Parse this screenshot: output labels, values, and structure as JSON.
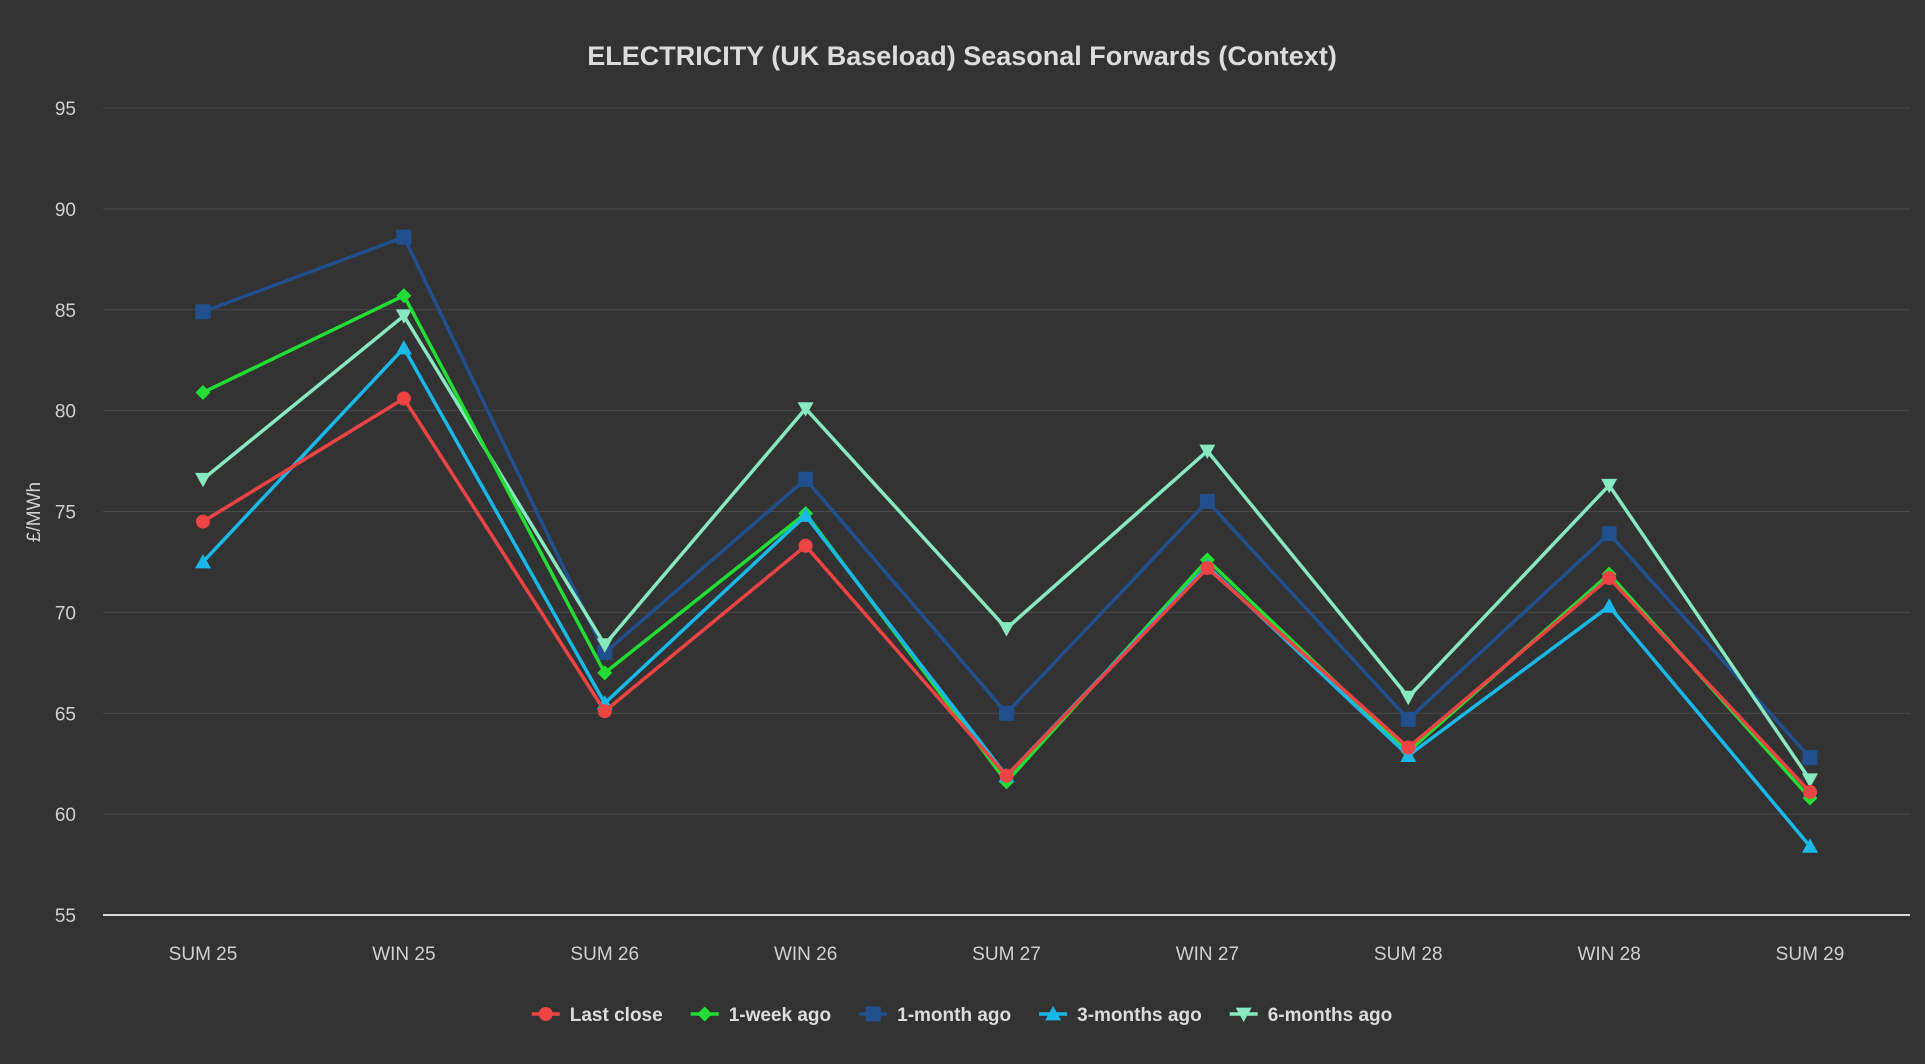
{
  "chart_data": {
    "type": "line",
    "title": "ELECTRICITY (UK Baseload) Seasonal Forwards (Context)",
    "xlabel": "",
    "ylabel": "£/MWh",
    "ylim": [
      55,
      95
    ],
    "yticks": [
      55,
      60,
      65,
      70,
      75,
      80,
      85,
      90,
      95
    ],
    "grid": true,
    "legend_position": "bottom",
    "categories": [
      "SUM 25",
      "WIN 25",
      "SUM 26",
      "WIN 26",
      "SUM 27",
      "WIN 27",
      "SUM 28",
      "WIN 28",
      "SUM 29"
    ],
    "series": [
      {
        "name": "Last close",
        "color": "#ee4444",
        "marker": "circle",
        "values": [
          74.5,
          80.6,
          65.1,
          73.3,
          61.9,
          72.2,
          63.3,
          71.7,
          61.1
        ]
      },
      {
        "name": "1-week ago",
        "color": "#22dd33",
        "marker": "diamond",
        "values": [
          80.9,
          85.7,
          67.0,
          74.9,
          61.6,
          72.6,
          63.1,
          71.9,
          60.8
        ]
      },
      {
        "name": "1-month ago",
        "color": "#22508e",
        "marker": "square",
        "values": [
          84.9,
          88.6,
          68.0,
          76.6,
          65.0,
          75.5,
          64.7,
          73.9,
          62.8
        ]
      },
      {
        "name": "3-months ago",
        "color": "#1ab8e8",
        "marker": "triangle-up",
        "values": [
          72.5,
          83.1,
          65.5,
          74.8,
          61.9,
          72.3,
          62.9,
          70.3,
          58.4
        ]
      },
      {
        "name": "6-months ago",
        "color": "#88e8c0",
        "marker": "triangle-down",
        "values": [
          76.6,
          84.7,
          68.4,
          80.1,
          69.2,
          78.0,
          65.8,
          76.3,
          61.7
        ]
      }
    ]
  }
}
